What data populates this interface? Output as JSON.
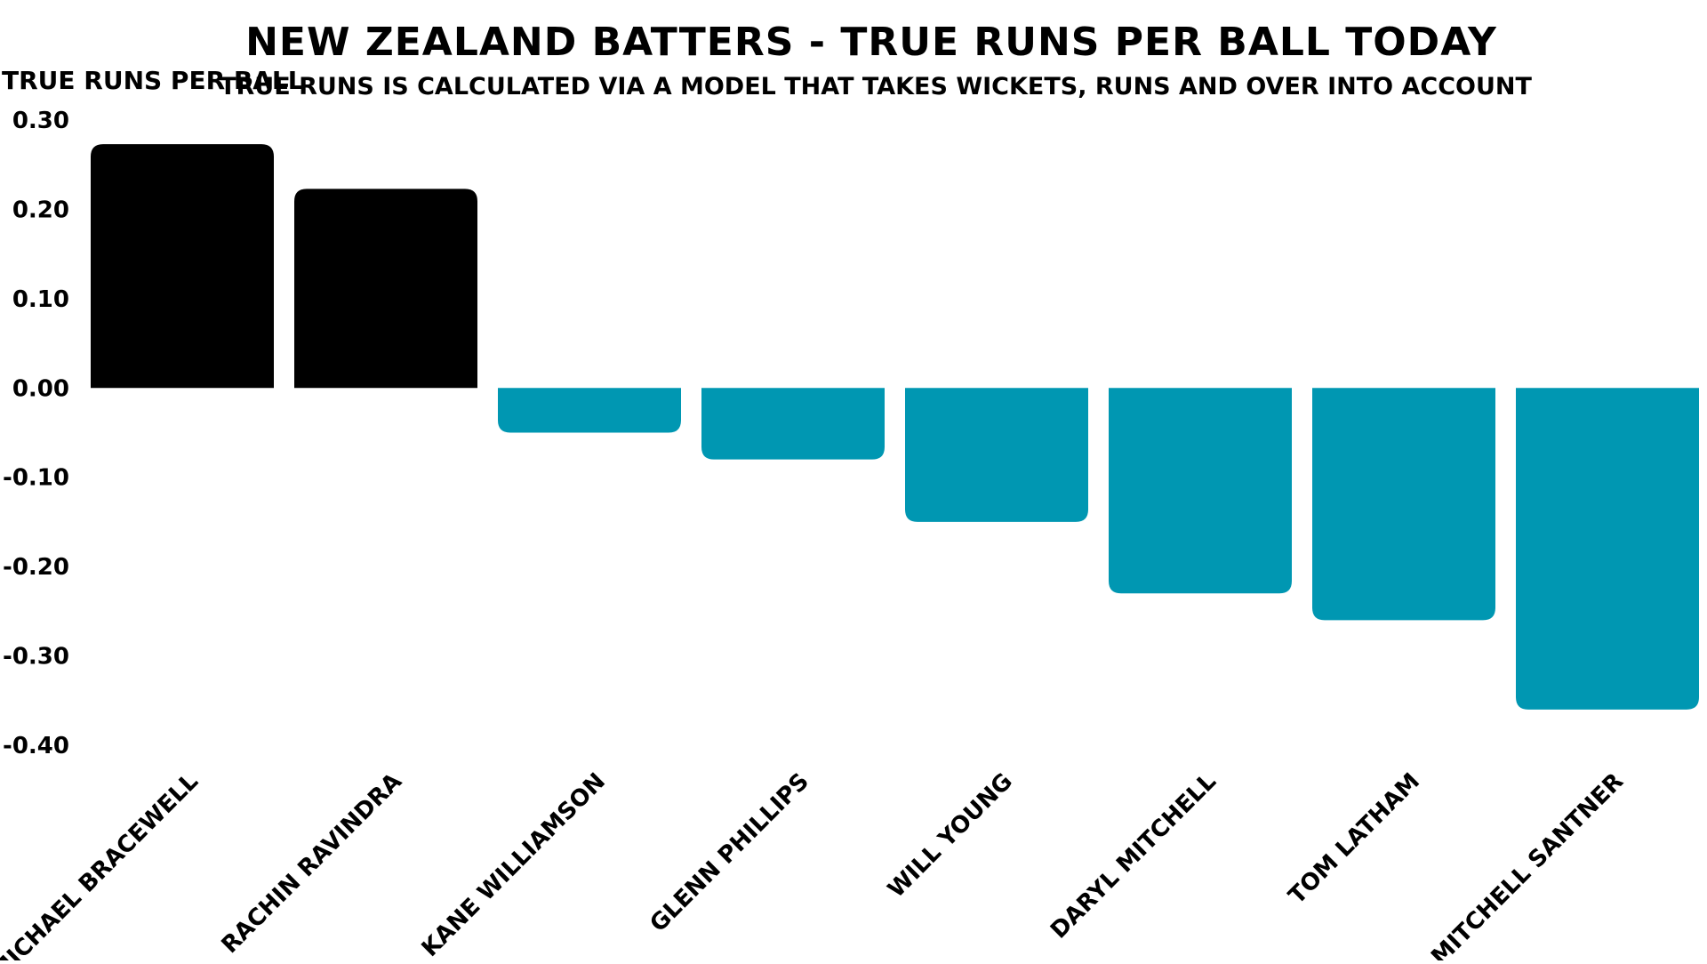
{
  "chart_data": {
    "type": "bar",
    "title": "NEW ZEALAND BATTERS - TRUE RUNS PER BALL TODAY",
    "subtitle": "TRUE RUNS IS CALCULATED VIA A MODEL THAT TAKES WICKETS, RUNS AND OVER INTO ACCOUNT",
    "xlabel": "",
    "ylabel": "TRUE RUNS PER BALL",
    "categories": [
      "MICHAEL BRACEWELL",
      "RACHIN RAVINDRA",
      "KANE WILLIAMSON",
      "GLENN PHILLIPS",
      "WILL YOUNG",
      "DARYL MITCHELL",
      "TOM LATHAM",
      "MITCHELL SANTNER"
    ],
    "values": [
      0.273,
      0.223,
      -0.05,
      -0.08,
      -0.15,
      -0.23,
      -0.26,
      -0.36
    ],
    "ylim": [
      -0.4,
      0.3
    ],
    "yticks": [
      "0.30",
      "0.20",
      "0.10",
      "0.00",
      "-0.10",
      "-0.20",
      "-0.30",
      "-0.40"
    ],
    "grid": false,
    "legend": "none",
    "colors": {
      "positive": "#000000",
      "negative": "#0097b2"
    }
  }
}
